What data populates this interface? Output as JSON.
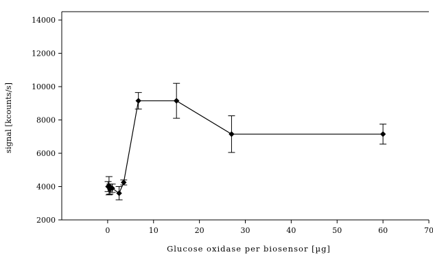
{
  "chart_data": {
    "type": "scatter",
    "title": "",
    "xlabel": "Glucose oxidase per biosensor [µg]",
    "ylabel": "signal [kcounts/s]",
    "xlim": [
      -10,
      70
    ],
    "ylim": [
      2000,
      14500
    ],
    "xticks": [
      0,
      10,
      20,
      30,
      40,
      50,
      60,
      70
    ],
    "yticks": [
      2000,
      4000,
      6000,
      8000,
      10000,
      12000,
      14000
    ],
    "grid": false,
    "reference_line": {
      "y": 14500
    },
    "series": [
      {
        "points": [
          {
            "x": 0.1,
            "y": 4000,
            "err": 300
          },
          {
            "x": 0.3,
            "y": 4050,
            "err": 550
          },
          {
            "x": 0.5,
            "y": 3850,
            "err": 300
          },
          {
            "x": 1.0,
            "y": 3900,
            "err": 250
          },
          {
            "x": 2.5,
            "y": 3600,
            "err": 400
          },
          {
            "x": 3.5,
            "y": 4250,
            "err": 150
          },
          {
            "x": 6.7,
            "y": 9150,
            "err": 500
          },
          {
            "x": 15.0,
            "y": 9150,
            "err": 1050
          },
          {
            "x": 27.0,
            "y": 7150,
            "err": 1100
          },
          {
            "x": 60.0,
            "y": 7150,
            "err": 600
          }
        ]
      }
    ]
  }
}
